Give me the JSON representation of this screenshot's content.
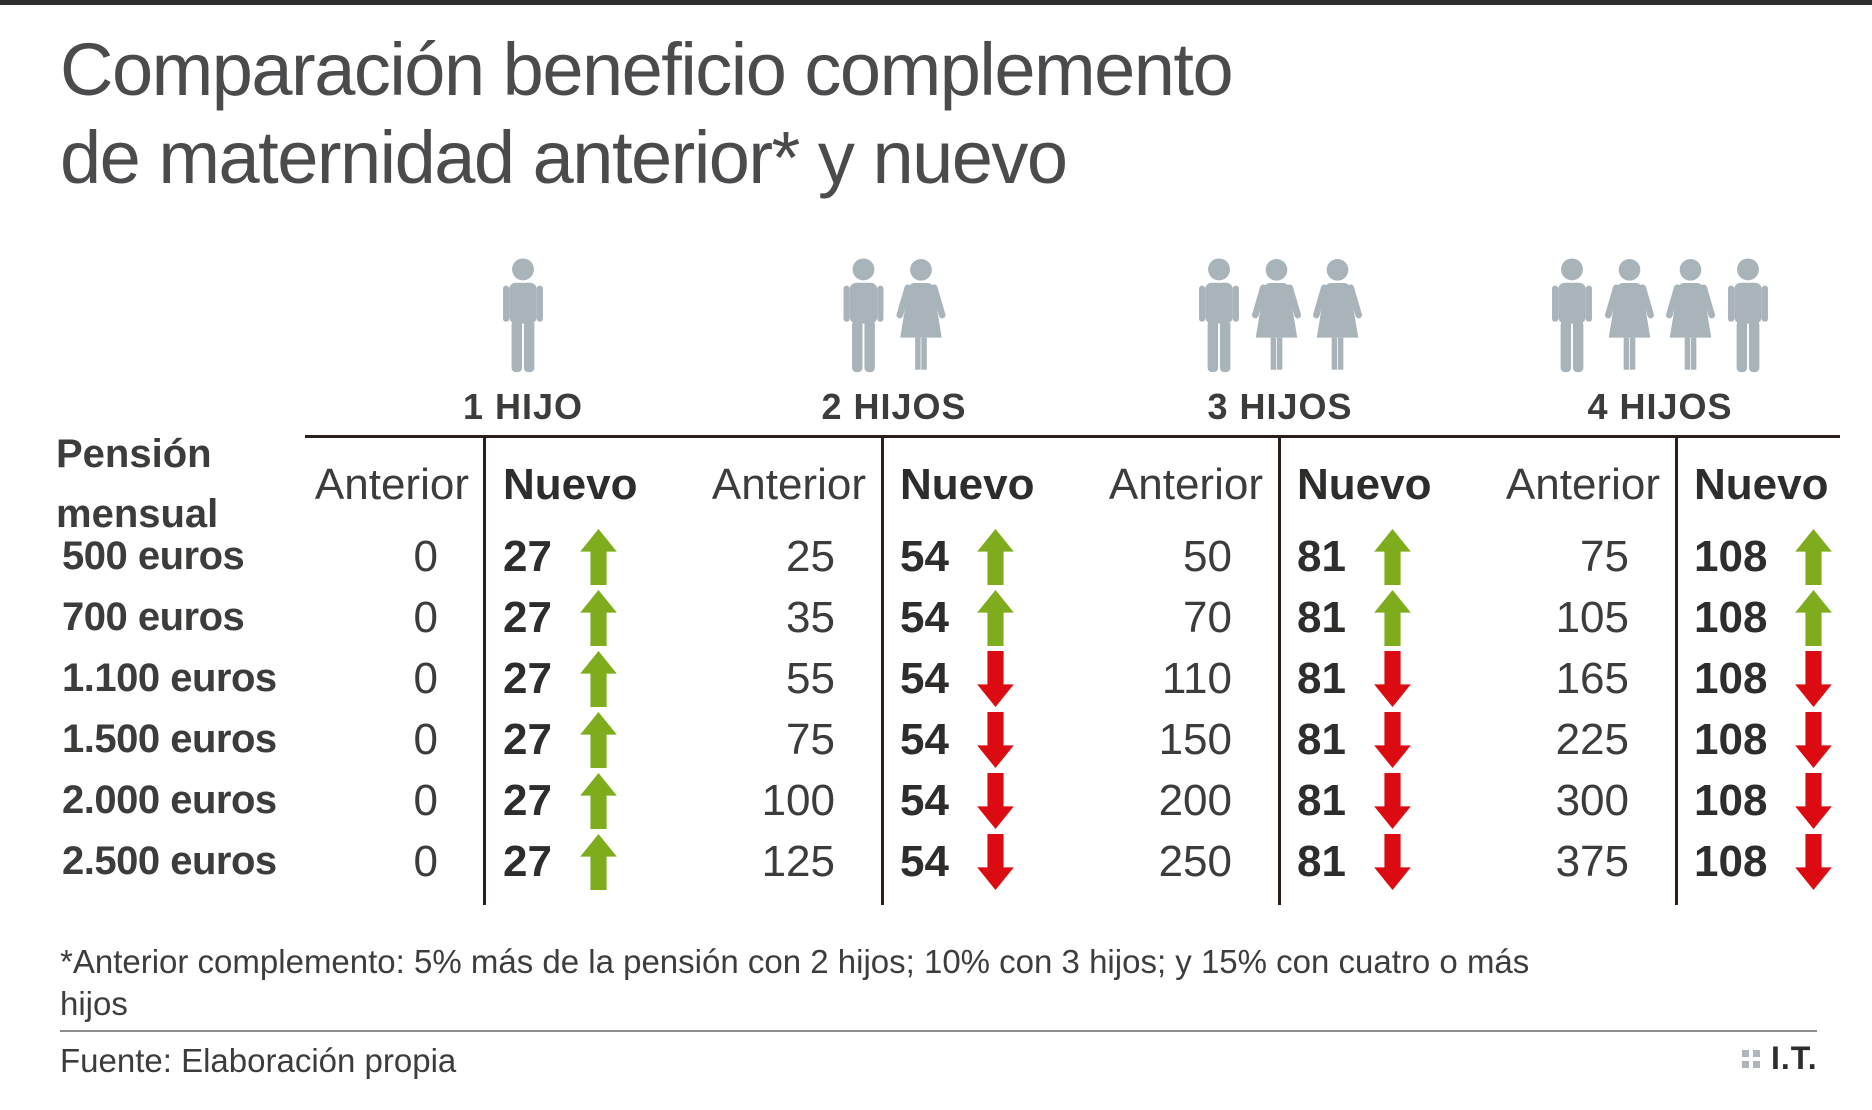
{
  "colors": {
    "green": "#7FAC1C",
    "red": "#DC0B12",
    "icon_gray": "#A9B3BA",
    "line_dark": "#2B2019",
    "top_bar": "#2E2E2E",
    "rule_gray": "#8E8E8E",
    "logo_square_gray": "#AEB5BB"
  },
  "header": {
    "title_line1": "Comparación beneficio complemento",
    "title_line2": "de maternidad anterior* y nuevo"
  },
  "table": {
    "row_header_line1": "Pensión",
    "row_header_line2": "mensual",
    "anterior_label": "Anterior",
    "nuevo_label": "Nuevo"
  },
  "chart_data": {
    "type": "table",
    "title": "Comparación beneficio complemento de maternidad anterior* y nuevo",
    "row_axis_label": "Pensión mensual",
    "rows": [
      "500 euros",
      "700 euros",
      "1.100 euros",
      "1.500 euros",
      "2.000 euros",
      "2.500 euros"
    ],
    "pension_values": [
      500,
      700,
      1100,
      1500,
      2000,
      2500
    ],
    "column_groups": [
      "1 HIJO",
      "2 HIJOS",
      "3 HIJOS",
      "4 HIJOS"
    ],
    "sub_columns": [
      "Anterior",
      "Nuevo"
    ],
    "series": [
      {
        "group": "1 HIJO",
        "icons": [
          "male"
        ],
        "anterior": [
          0,
          0,
          0,
          0,
          0,
          0
        ],
        "nuevo": [
          27,
          27,
          27,
          27,
          27,
          27
        ],
        "trend": [
          "up",
          "up",
          "up",
          "up",
          "up",
          "up"
        ]
      },
      {
        "group": "2 HIJOS",
        "icons": [
          "male",
          "female"
        ],
        "anterior": [
          25,
          35,
          55,
          75,
          100,
          125
        ],
        "nuevo": [
          54,
          54,
          54,
          54,
          54,
          54
        ],
        "trend": [
          "up",
          "up",
          "down",
          "down",
          "down",
          "down"
        ]
      },
      {
        "group": "3 HIJOS",
        "icons": [
          "male",
          "female",
          "female"
        ],
        "anterior": [
          50,
          70,
          110,
          150,
          200,
          250
        ],
        "nuevo": [
          81,
          81,
          81,
          81,
          81,
          81
        ],
        "trend": [
          "up",
          "up",
          "down",
          "down",
          "down",
          "down"
        ]
      },
      {
        "group": "4 HIJOS",
        "icons": [
          "male",
          "female",
          "female",
          "male"
        ],
        "anterior": [
          75,
          105,
          165,
          225,
          300,
          375
        ],
        "nuevo": [
          108,
          108,
          108,
          108,
          108,
          108
        ],
        "trend": [
          "up",
          "up",
          "down",
          "down",
          "down",
          "down"
        ]
      }
    ],
    "footnote": "*Anterior complemento: 5% más de la pensión con 2 hijos; 10% con 3 hijos; y 15% con cuatro o más hijos",
    "source": "Fuente: Elaboración propia"
  },
  "footer": {
    "footnote_line1": "*Anterior complemento: 5% más de la pensión con 2 hijos; 10% con 3 hijos; y 15% con cuatro o más",
    "footnote_line2": "hijos",
    "source": "Fuente: Elaboración propia",
    "logo_text": "I.T."
  }
}
